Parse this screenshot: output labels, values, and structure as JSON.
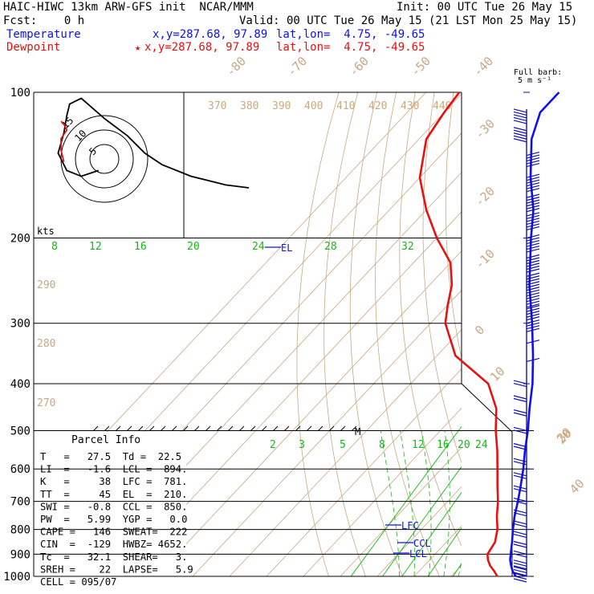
{
  "header": {
    "title": "HAIC-HIWC 13km ARW-GFS init  NCAR/MMM",
    "init": "Init: 00 UTC Tue 26 May 15",
    "fcst": "Fcst:    0 h",
    "valid": "Valid: 00 UTC Tue 26 May 15 (21 LST Mon 25 May 15)",
    "temp_label": "Temperature",
    "temp_xy": "x,y=287.68, 97.89",
    "temp_latlon": "lat,lon=  4.75, -49.65",
    "dew_label": "Dewpoint",
    "dew_marker": "★",
    "dew_xy": "x,y=287.68, 97.89",
    "dew_latlon": "lat,lon=  4.75, -49.65"
  },
  "barb_legend": {
    "line1": "Full barb:",
    "line2": "5 m s⁻¹"
  },
  "colors": {
    "temperature": "#1010ee",
    "dewpoint": "#e81010",
    "mixing_ratio": "#10bb10",
    "dry_adiabat": "#c8a882",
    "isobar": "#000000",
    "wind_barb": "#1010b0"
  },
  "chart_data": {
    "type": "skew-t",
    "pressure_levels": [
      100,
      200,
      300,
      400,
      500,
      600,
      700,
      800,
      900,
      1000
    ],
    "isotherm_labels": [
      "-80",
      "-70",
      "-60",
      "-50",
      "-40",
      "-30",
      "-20",
      "-10",
      "0",
      "10",
      "20",
      "30",
      "40"
    ],
    "theta_labels_top": [
      "370",
      "380",
      "390",
      "400",
      "410",
      "420",
      "430",
      "440"
    ],
    "theta_labels_left": [
      "290",
      "280",
      "270"
    ],
    "mixing_ratio_upper": [
      "8",
      "12",
      "16",
      "20",
      "24",
      "28",
      "32"
    ],
    "mixing_ratio_lower": [
      "2",
      "3",
      "5",
      "8",
      "12",
      "16",
      "20",
      "24"
    ],
    "temperature_profile": {
      "name": "Temperature",
      "pressure_hPa": [
        1000,
        975,
        950,
        925,
        900,
        850,
        800,
        750,
        700,
        650,
        600,
        550,
        500,
        450,
        400,
        350,
        300,
        250,
        200,
        175,
        150,
        125,
        110,
        100
      ],
      "temp_C": [
        27.5,
        25.3,
        23.5,
        21.8,
        20.5,
        17.8,
        14.8,
        11.8,
        9.0,
        5.8,
        2.2,
        -2.0,
        -6.3,
        -11.5,
        -17.0,
        -24.0,
        -32.5,
        -43.0,
        -54.5,
        -61.0,
        -70.0,
        -79.5,
        -84.0,
        -84.0
      ]
    },
    "dewpoint_profile": {
      "name": "Dewpoint",
      "pressure_hPa": [
        1000,
        975,
        950,
        925,
        900,
        850,
        800,
        750,
        700,
        650,
        600,
        550,
        500,
        450,
        400,
        350,
        300,
        275,
        250,
        225,
        200,
        175,
        150,
        125,
        110,
        100
      ],
      "dewpoint_C": [
        22.5,
        20.3,
        17.8,
        15.8,
        14.2,
        13.2,
        10.6,
        7.0,
        3.6,
        -0.5,
        -4.8,
        -9.5,
        -15.0,
        -20.5,
        -29.0,
        -45.0,
        -56.0,
        -60.0,
        -64.0,
        -70.0,
        -80.0,
        -90.0,
        -100.0,
        -108.0,
        -110.0,
        -111.0
      ]
    },
    "levels_marked": [
      {
        "label": "EL",
        "pressure_hPa": 210
      },
      {
        "label": "M",
        "pressure_hPa": 500
      },
      {
        "label": "LFC",
        "pressure_hPa": 781
      },
      {
        "label": "CCL",
        "pressure_hPa": 850
      },
      {
        "label": "LCL",
        "pressure_hPa": 894
      }
    ],
    "hodograph": {
      "kts_label": "kts",
      "ring_labels": [
        "5",
        "10",
        "15"
      ],
      "u_kts": [
        -2,
        -8,
        -13,
        -16,
        -14,
        -13,
        -12,
        -8,
        0,
        8,
        14,
        20,
        30,
        42,
        50
      ],
      "v_kts": [
        -4,
        -6,
        -4,
        2,
        9,
        15,
        19,
        21,
        14,
        8,
        2,
        -2,
        -6,
        -9,
        -10
      ],
      "inner_u_kts": [
        -14,
        -15,
        -15,
        -13,
        -14,
        -15
      ],
      "inner_v_kts": [
        -1,
        3,
        7,
        10,
        12,
        13
      ]
    },
    "wind_barbs": {
      "pressure_hPa": [
        110,
        120,
        135,
        150,
        165,
        180,
        200,
        220,
        240,
        260,
        280,
        300,
        330,
        360,
        400,
        430,
        460,
        500,
        540,
        580,
        620,
        660,
        700,
        740,
        780,
        820,
        860,
        900,
        940,
        970,
        1000
      ],
      "speed_ms": [
        25,
        25,
        25,
        30,
        30,
        30,
        30,
        30,
        30,
        30,
        25,
        20,
        5,
        5,
        10,
        10,
        10,
        10,
        10,
        10,
        10,
        10,
        10,
        10,
        10,
        10,
        10,
        10,
        15,
        15,
        15
      ],
      "barb_side": [
        "L",
        "L",
        "R",
        "R",
        "R",
        "R",
        "R",
        "R",
        "R",
        "R",
        "R",
        "R",
        "R",
        "R",
        "L",
        "L",
        "L",
        "L",
        "L",
        "L",
        "L",
        "L",
        "L",
        "L",
        "L",
        "L",
        "L",
        "L",
        "L",
        "L",
        "L"
      ]
    }
  },
  "parcel_info": {
    "title": "Parcel Info",
    "rows": [
      "T   =   27.5  Td =  22.5",
      "LI  =   -1.6  LCL =  894.",
      "K   =     38  LFC =  781.",
      "TT  =     45  EL  =  210.",
      "SWI =   -0.8  CCL =  850.",
      "PW  =   5.99  YGP =   0.0",
      "CAPE =   146  SWEAT=  222",
      "CIN  =  -129  HWBZ= 4652.",
      "Tc  =   32.1  SHEAR=   3.",
      "SREH =    22  LAPSE=   5.9",
      "CELL = 095/07"
    ]
  }
}
